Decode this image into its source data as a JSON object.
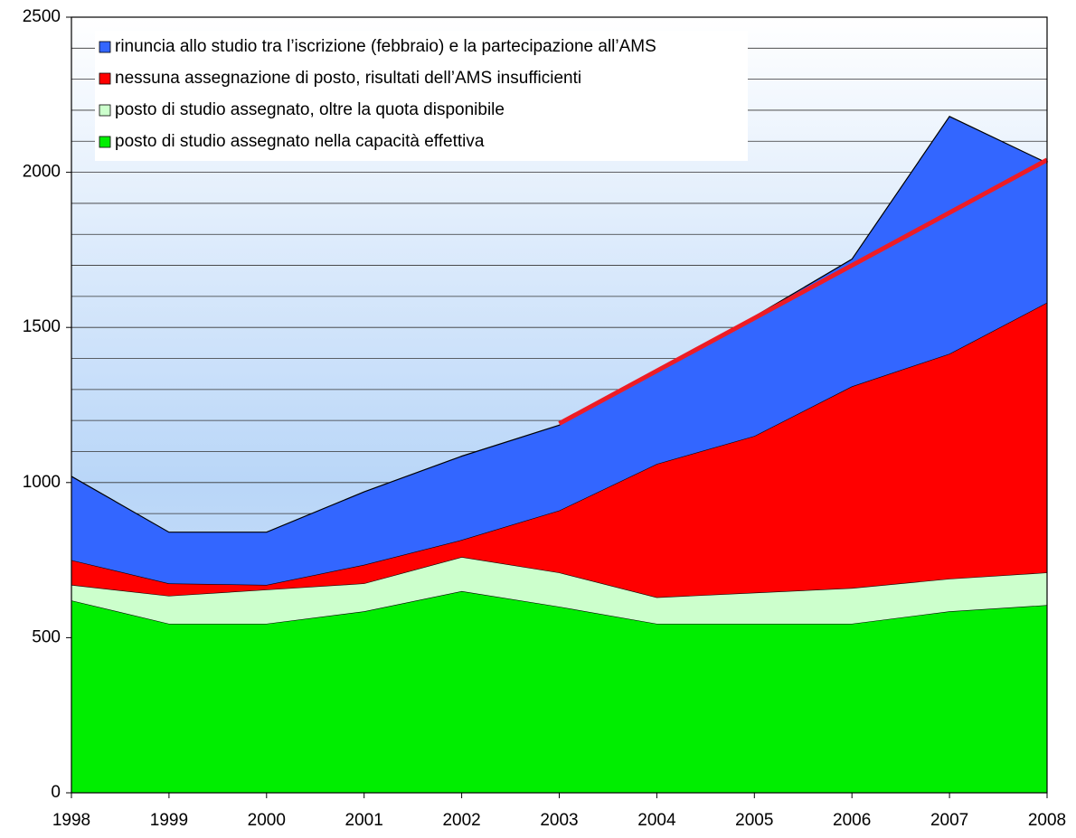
{
  "chart_data": {
    "type": "stacked-area",
    "x": [
      1998,
      1999,
      2000,
      2001,
      2002,
      2003,
      2004,
      2005,
      2006,
      2007,
      2008
    ],
    "series": [
      {
        "name": "posto di studio assegnato nella capacità effettiva",
        "color": "#00ee00",
        "values": [
          620,
          545,
          545,
          585,
          650,
          600,
          545,
          545,
          545,
          585,
          605
        ]
      },
      {
        "name": "posto di studio assegnato, oltre la quota disponibile",
        "color": "#ccffcc",
        "values": [
          50,
          90,
          110,
          90,
          110,
          110,
          85,
          100,
          115,
          105,
          105
        ]
      },
      {
        "name": "nessuna assegnazione di posto, risultati dell’AMS insufficienti",
        "color": "#ff0000",
        "values": [
          80,
          40,
          15,
          60,
          55,
          200,
          430,
          505,
          650,
          725,
          870
        ]
      },
      {
        "name": "rinuncia allo studio tra l’iscrizione (febbraio) e la partecipazione all’AMS",
        "color": "#3366ff",
        "values": [
          270,
          165,
          170,
          235,
          270,
          275,
          300,
          385,
          410,
          765,
          450
        ]
      }
    ],
    "trend_line": {
      "x": [
        2003,
        2008
      ],
      "values": [
        1190,
        2040
      ],
      "color": "#ee1c25"
    },
    "xlim": [
      1998,
      2008
    ],
    "xticks": [
      1998,
      1999,
      2000,
      2001,
      2002,
      2003,
      2004,
      2005,
      2006,
      2007,
      2008
    ],
    "ylim": [
      0,
      2500
    ],
    "yticks": [
      0,
      500,
      1000,
      1500,
      2000,
      2500
    ],
    "grid_lines": [
      100,
      200,
      300,
      400,
      500,
      600,
      700,
      800,
      900,
      1000,
      1100,
      1200,
      1300,
      1400,
      1500,
      1600,
      1700,
      1800,
      1900,
      2000,
      2100,
      2200,
      2300,
      2400,
      2500
    ],
    "legend": "top-left"
  }
}
